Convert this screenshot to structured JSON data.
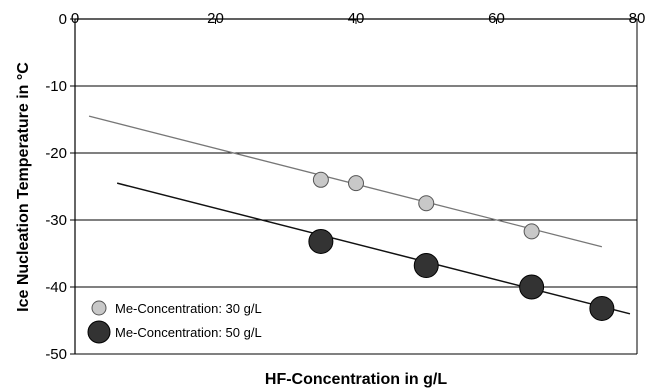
{
  "chart_data": {
    "type": "scatter",
    "xlabel": "HF-Concentration in g/L",
    "ylabel": "Ice Nucleation Temperature in °C",
    "xlim": [
      0,
      80
    ],
    "ylim": [
      -50,
      0
    ],
    "xticks": [
      0,
      20,
      40,
      60,
      80
    ],
    "yticks": [
      0,
      -10,
      -20,
      -30,
      -40,
      -50
    ],
    "grid": "horizontal",
    "legend_position": "bottom-left",
    "series": [
      {
        "name": "Me-Concentration: 30 g/L",
        "marker_color": "#c8c8c8",
        "line_color": "#777777",
        "marker": "small-circle",
        "points": [
          {
            "x": 35,
            "y": -24.0
          },
          {
            "x": 40,
            "y": -24.5
          },
          {
            "x": 50,
            "y": -27.5
          },
          {
            "x": 65,
            "y": -31.7
          }
        ],
        "trendline": {
          "x": [
            2,
            75
          ],
          "y": [
            -14.5,
            -34.0
          ]
        }
      },
      {
        "name": "Me-Concentration: 50 g/L",
        "marker_color": "#333333",
        "line_color": "#111111",
        "marker": "large-circle",
        "points": [
          {
            "x": 35,
            "y": -33.2
          },
          {
            "x": 50,
            "y": -36.8
          },
          {
            "x": 65,
            "y": -40.0
          },
          {
            "x": 75,
            "y": -43.2
          }
        ],
        "trendline": {
          "x": [
            6,
            79
          ],
          "y": [
            -24.5,
            -44.0
          ]
        }
      }
    ]
  }
}
